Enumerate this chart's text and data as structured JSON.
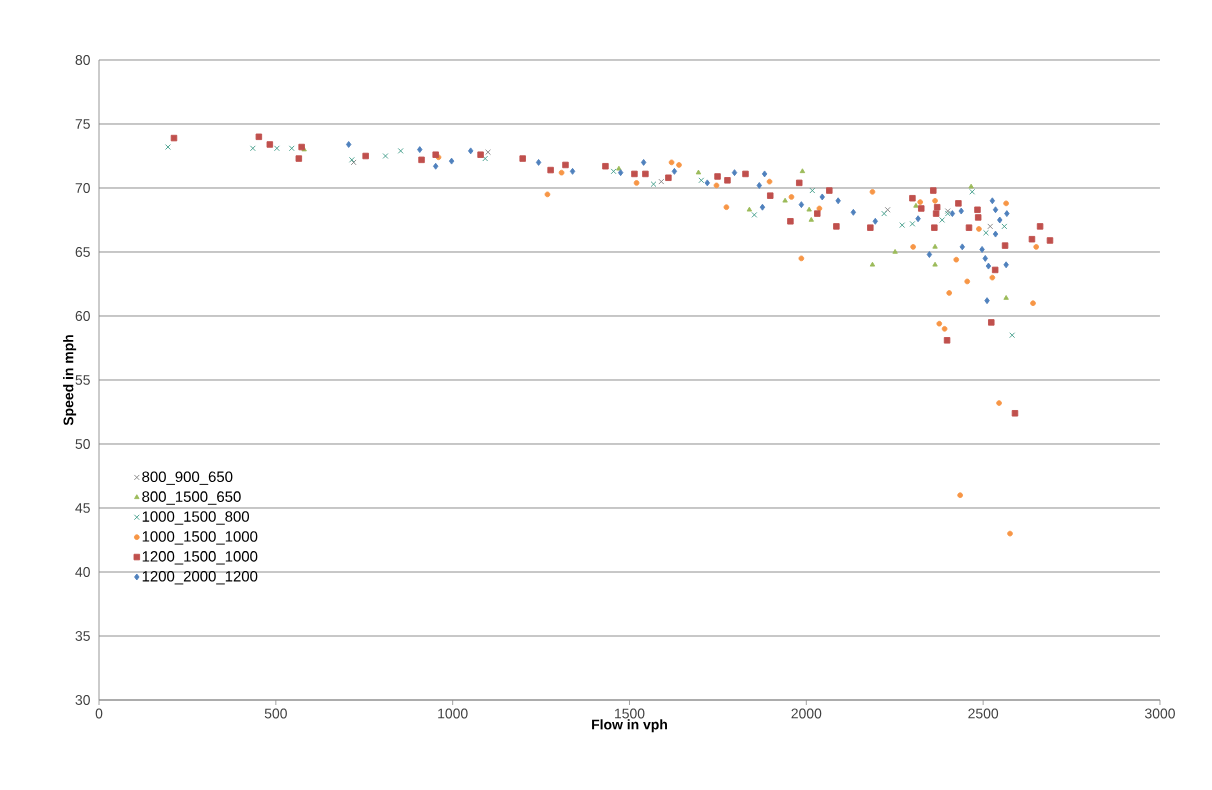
{
  "chart_data": {
    "type": "scatter",
    "xlabel": "Flow in vph",
    "ylabel": "Speed in mph",
    "xlim": [
      0,
      3000
    ],
    "xticks": [
      0,
      500,
      1000,
      1500,
      2000,
      2500,
      3000
    ],
    "ylim": [
      30,
      80
    ],
    "yticks": [
      30,
      35,
      40,
      45,
      50,
      55,
      60,
      65,
      70,
      75,
      80
    ],
    "grid": "y",
    "legend": "left",
    "series": [
      {
        "name": "800_900_650",
        "color": "#808080",
        "marker": "cross",
        "x": [
          720,
          1100,
          1590,
          2230,
          2400,
          2520
        ],
        "values": [
          72.0,
          72.8,
          70.5,
          68.3,
          68.2,
          67.0
        ]
      },
      {
        "name": "800_1500_650",
        "color": "#9bbb59",
        "marker": "triangle",
        "x": [
          580,
          1470,
          1695,
          1839,
          1940,
          1989,
          2008,
          2014,
          2187,
          2251,
          2310,
          2364,
          2364,
          2466,
          2565
        ],
        "values": [
          73.0,
          71.5,
          71.2,
          68.3,
          69.0,
          71.3,
          68.3,
          67.5,
          64.0,
          65.0,
          68.6,
          65.4,
          64.0,
          70.1,
          61.4
        ]
      },
      {
        "name": "1000_1500_800",
        "color": "#3c9a86",
        "marker": "cross",
        "x": [
          195,
          435,
          503,
          545,
          715,
          810,
          853,
          1092,
          1455,
          1568,
          1703,
          1853,
          2017,
          2220,
          2271,
          2300,
          2384,
          2400,
          2469,
          2508,
          2560,
          2582
        ],
        "values": [
          73.2,
          73.1,
          73.1,
          73.1,
          72.2,
          72.5,
          72.9,
          72.3,
          71.3,
          70.3,
          70.6,
          67.9,
          69.8,
          68.0,
          67.1,
          67.2,
          67.5,
          68.0,
          69.7,
          66.5,
          67.0,
          58.5
        ]
      },
      {
        "name": "1000_1500_1000",
        "color": "#f79646",
        "marker": "circle",
        "x": [
          960,
          1268,
          1308,
          1520,
          1619,
          1640,
          1746,
          1774,
          1896,
          1958,
          1986,
          2037,
          2187,
          2302,
          2322,
          2364,
          2376,
          2391,
          2404,
          2424,
          2435,
          2455,
          2488,
          2526,
          2545,
          2565,
          2576,
          2641,
          2650
        ],
        "values": [
          72.4,
          69.5,
          71.2,
          70.4,
          72.0,
          71.8,
          70.2,
          68.5,
          70.5,
          69.3,
          64.5,
          68.4,
          69.7,
          65.4,
          68.9,
          69.0,
          59.4,
          59.0,
          61.8,
          64.4,
          46.0,
          62.7,
          66.8,
          63.0,
          53.2,
          68.8,
          43.0,
          61.0,
          65.4
        ]
      },
      {
        "name": "1200_1500_1000",
        "color": "#c0504d",
        "marker": "square",
        "x": [
          212,
          452,
          483,
          565,
          573,
          754,
          912,
          952,
          1079,
          1198,
          1277,
          1319,
          1432,
          1514,
          1545,
          1610,
          1749,
          1777,
          1828,
          1898,
          1955,
          1980,
          2031,
          2065,
          2085,
          2181,
          2300,
          2325,
          2359,
          2362,
          2367,
          2370,
          2398,
          2430,
          2460,
          2484,
          2486,
          2523,
          2534,
          2562,
          2590,
          2638,
          2661,
          2689
        ],
        "values": [
          73.9,
          74.0,
          73.4,
          72.3,
          73.2,
          72.5,
          72.2,
          72.6,
          72.6,
          72.3,
          71.4,
          71.8,
          71.7,
          71.1,
          71.1,
          70.8,
          70.9,
          70.6,
          71.1,
          69.4,
          67.4,
          70.4,
          68.0,
          69.8,
          67.0,
          66.9,
          69.2,
          68.4,
          69.8,
          66.9,
          68.0,
          68.5,
          58.1,
          68.8,
          66.9,
          68.3,
          67.7,
          59.5,
          63.6,
          65.5,
          52.4,
          66.0,
          67.0,
          65.9
        ]
      },
      {
        "name": "1200_2000_1200",
        "color": "#4f81bd",
        "marker": "diamond",
        "x": [
          706,
          907,
          952,
          997,
          1051,
          1243,
          1339,
          1475,
          1540,
          1627,
          1720,
          1797,
          1867,
          1876,
          1882,
          1986,
          2045,
          2090,
          2133,
          2195,
          2316,
          2348,
          2413,
          2438,
          2441,
          2497,
          2506,
          2511,
          2515,
          2526,
          2535,
          2535,
          2547,
          2565,
          2567
        ],
        "values": [
          73.4,
          73.0,
          71.7,
          72.1,
          72.9,
          72.0,
          71.3,
          71.2,
          72.0,
          71.3,
          70.4,
          71.2,
          70.2,
          68.5,
          71.1,
          68.7,
          69.3,
          69.0,
          68.1,
          67.4,
          67.6,
          64.8,
          68.0,
          68.2,
          65.4,
          65.2,
          64.5,
          61.2,
          63.9,
          69.0,
          68.3,
          66.4,
          67.5,
          64.0,
          68.0
        ]
      }
    ]
  }
}
